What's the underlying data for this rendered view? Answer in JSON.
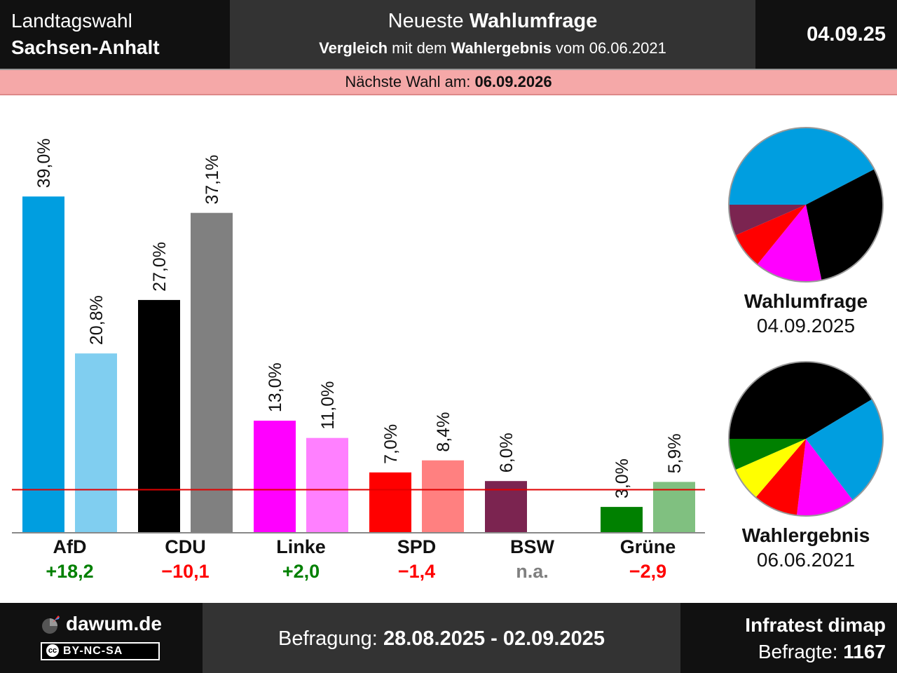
{
  "header": {
    "region_line1": "Landtagswahl",
    "region_line2": "Sachsen-Anhalt",
    "title_prefix": "Neueste",
    "title_bold": "Wahlumfrage",
    "subtitle_bold1": "Vergleich",
    "subtitle_text1": " mit dem ",
    "subtitle_bold2": "Wahlergebnis",
    "subtitle_text2": " vom 06.06.2021",
    "date": "04.09.25"
  },
  "next_election": {
    "label": "Nächste Wahl am: ",
    "date": "06.09.2026"
  },
  "chart_data": {
    "type": "bar",
    "categories": [
      "AfD",
      "CDU",
      "Linke",
      "SPD",
      "BSW",
      "Grüne"
    ],
    "series": [
      {
        "name": "Wahlumfrage",
        "values": [
          39.0,
          27.0,
          13.0,
          7.0,
          6.0,
          3.0
        ],
        "labels": [
          "39,0%",
          "27,0%",
          "13,0%",
          "7,0%",
          "6,0%",
          "3,0%"
        ]
      },
      {
        "name": "Wahlergebnis",
        "values": [
          20.8,
          37.1,
          11.0,
          8.4,
          null,
          5.9
        ],
        "labels": [
          "20,8%",
          "37,1%",
          "11,0%",
          "8,4%",
          "",
          "5,9%"
        ]
      }
    ],
    "colors_poll": [
      "#009ee0",
      "#000000",
      "#ff00ff",
      "#ff0000",
      "#7b2450",
      "#008000"
    ],
    "colors_result": [
      "#80cef0",
      "#808080",
      "#ff80ff",
      "#ff8080",
      "#bd92a8",
      "#80c080"
    ],
    "differences": [
      "+18,2",
      "−10,1",
      "+2,0",
      "−1,4",
      "n.a.",
      "−2,9"
    ],
    "diff_colors": [
      "#008000",
      "#ff0000",
      "#008000",
      "#ff0000",
      "#808080",
      "#ff0000"
    ],
    "threshold": 5,
    "ylim": [
      0,
      42
    ]
  },
  "pies": [
    {
      "title": "Wahlumfrage",
      "date": "04.09.2025",
      "slices": [
        {
          "value": 39.0,
          "color": "#009ee0"
        },
        {
          "value": 27.0,
          "color": "#000000"
        },
        {
          "value": 13.0,
          "color": "#ff00ff"
        },
        {
          "value": 7.0,
          "color": "#ff0000"
        },
        {
          "value": 6.0,
          "color": "#7b2450"
        }
      ]
    },
    {
      "title": "Wahlergebnis",
      "date": "06.06.2021",
      "slices": [
        {
          "value": 37.1,
          "color": "#000000"
        },
        {
          "value": 20.8,
          "color": "#009ee0"
        },
        {
          "value": 11.0,
          "color": "#ff00ff"
        },
        {
          "value": 8.4,
          "color": "#ff0000"
        },
        {
          "value": 6.4,
          "color": "#ffff00"
        },
        {
          "value": 5.9,
          "color": "#008000"
        }
      ]
    }
  ],
  "footer": {
    "site": "dawum.de",
    "license": "BY-NC-SA",
    "cc": "cc",
    "survey_label": "Befragung: ",
    "survey_period": "28.08.2025 - 02.09.2025",
    "institute": "Infratest dimap",
    "respondents_label": "Befragte: ",
    "respondents": "1167"
  }
}
